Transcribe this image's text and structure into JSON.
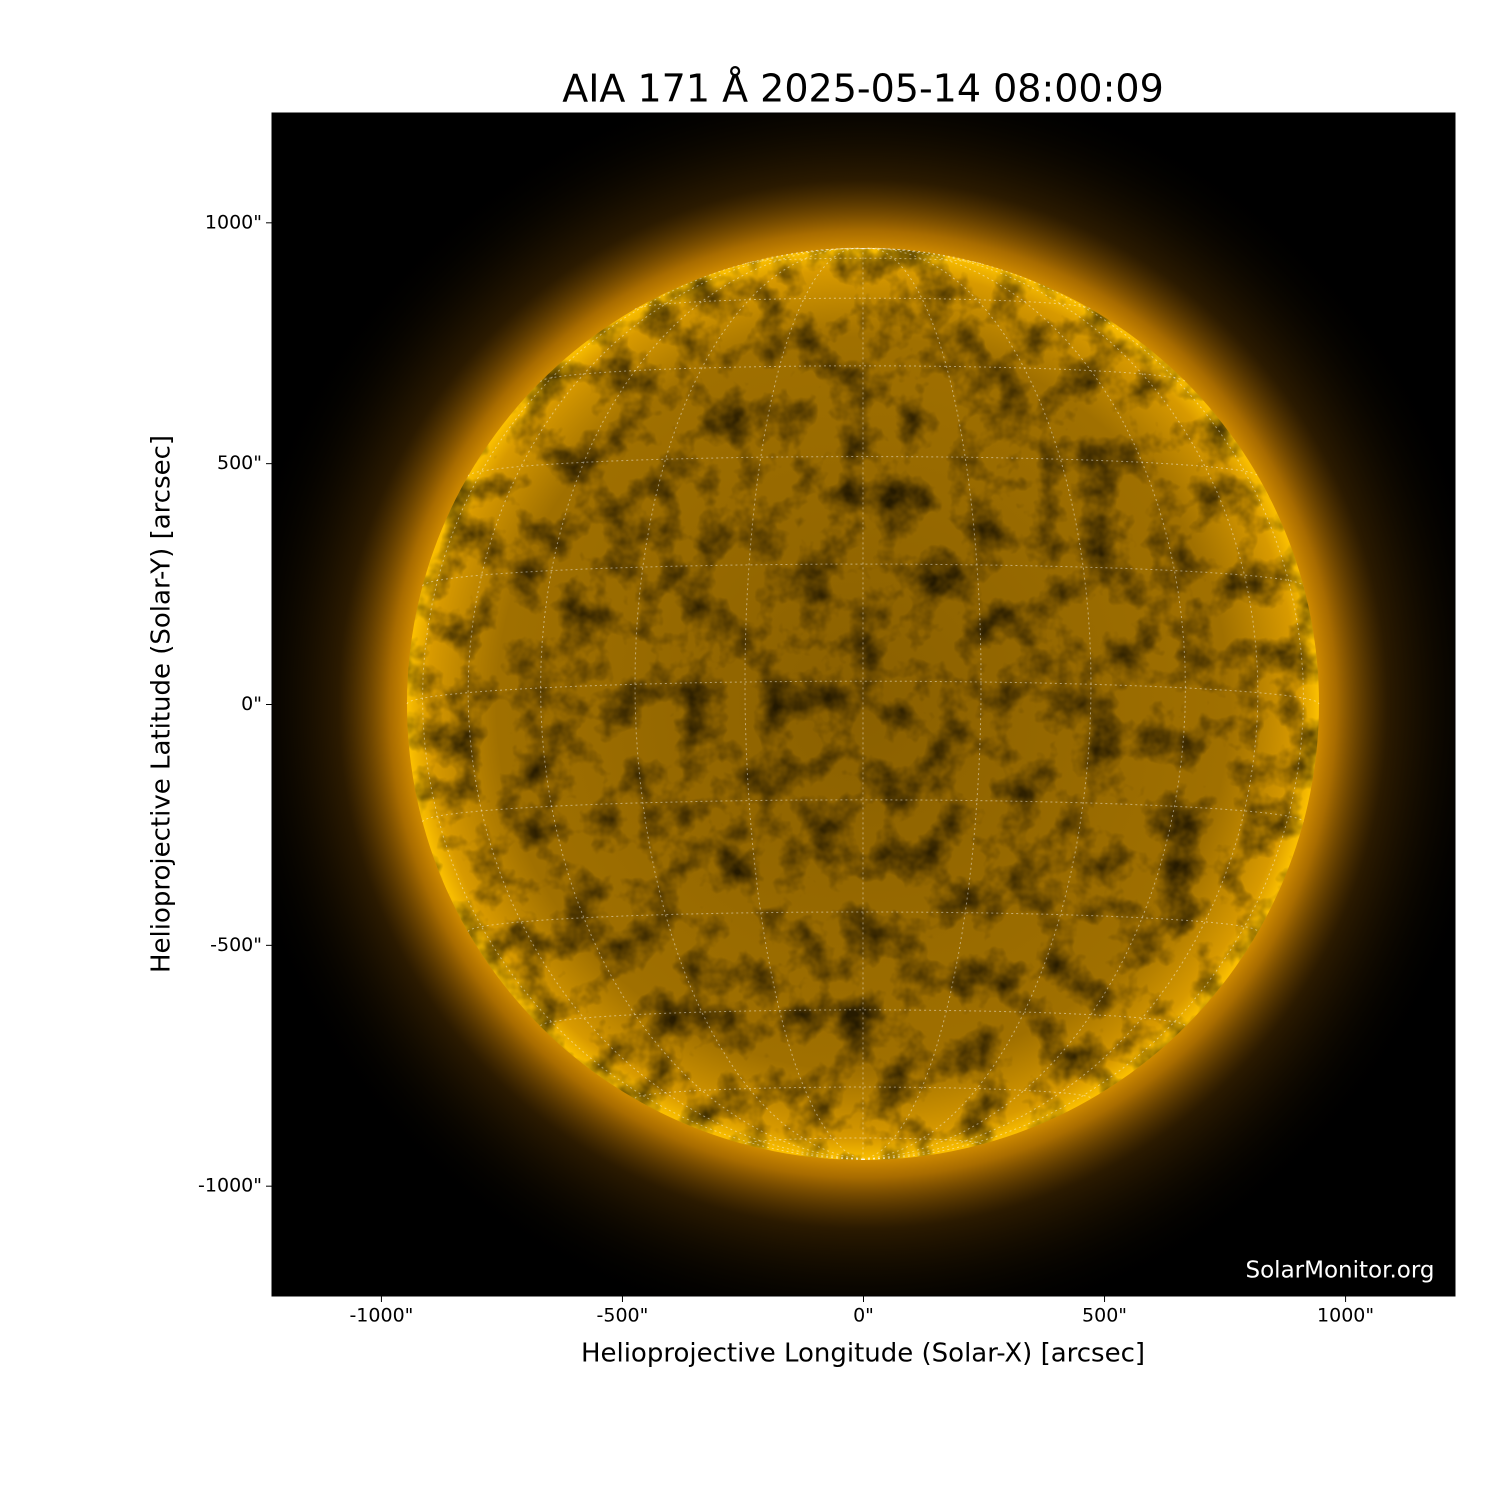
{
  "chart_data": {
    "type": "image",
    "title": "AIA 171 Å 2025-05-14 08:00:09",
    "x_label": "Helioprojective Longitude (Solar-X) [arcsec]",
    "y_label": "Helioprojective Latitude (Solar-Y) [arcsec]",
    "watermark": "SolarMonitor.org",
    "xlim": [
      -1227,
      1227
    ],
    "ylim": [
      -1228,
      1228
    ],
    "xticks": [
      {
        "value": -1000,
        "label": "-1000\""
      },
      {
        "value": -500,
        "label": "-500\""
      },
      {
        "value": 0,
        "label": "0\""
      },
      {
        "value": 500,
        "label": "500\""
      },
      {
        "value": 1000,
        "label": "1000\""
      }
    ],
    "yticks": [
      {
        "value": -1000,
        "label": "-1000\""
      },
      {
        "value": -500,
        "label": "-500\""
      },
      {
        "value": 0,
        "label": "0\""
      },
      {
        "value": 500,
        "label": "500\""
      },
      {
        "value": 1000,
        "label": "1000\""
      }
    ]
  }
}
